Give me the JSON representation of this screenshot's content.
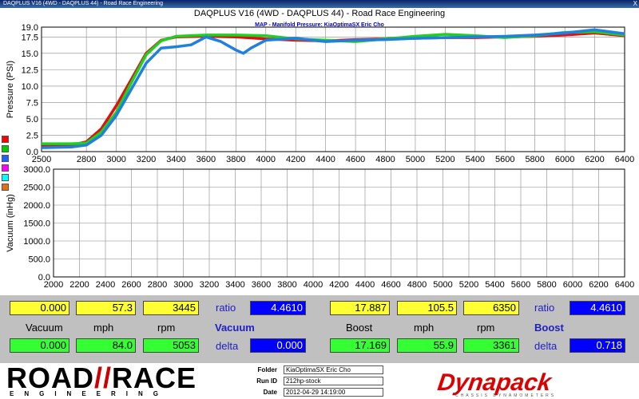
{
  "window": {
    "title": "DAQPLUS V16 (4WD - DAQPLUS 44) - Road Race Engineering",
    "close": "X"
  },
  "header": {
    "title": "DAQPLUS V16 (4WD - DAQPLUS 44) - Road Race Engineering",
    "subtitle": "MAP - Manifold Pressure: KiaOptimaSX Eric Cho"
  },
  "legend_colors": [
    "#ff0000",
    "#00cc00",
    "#2060ff",
    "#ff00ff",
    "#00ffff",
    "#e07010"
  ],
  "chart_data": [
    {
      "type": "line",
      "ylabel": "Pressure (PSI)",
      "ylim": [
        0,
        19
      ],
      "yticks": [
        "0.0",
        "2.5",
        "5.0",
        "7.5",
        "10.0",
        "12.5",
        "15.0",
        "17.5",
        "19.0"
      ],
      "xlim": [
        2500,
        6400
      ],
      "xticks": [
        "2500",
        "2800",
        "3000",
        "3200",
        "3400",
        "3600",
        "3800",
        "4000",
        "4200",
        "4400",
        "4600",
        "4800",
        "5000",
        "5200",
        "5400",
        "5600",
        "5800",
        "6000",
        "6200",
        "6400"
      ],
      "grid": true,
      "series": [
        {
          "color": "#e01010",
          "x": [
            2500,
            2700,
            2800,
            2900,
            3000,
            3100,
            3200,
            3300,
            3400,
            3600,
            3800,
            4000,
            4200,
            4400,
            4600,
            4800,
            5000,
            5200,
            5400,
            5600,
            5800,
            6000,
            6200,
            6400
          ],
          "y": [
            1.0,
            1.0,
            1.5,
            3.5,
            7.0,
            11.0,
            15.0,
            17.0,
            17.5,
            17.6,
            17.5,
            17.2,
            17.0,
            16.9,
            17.1,
            17.2,
            17.3,
            17.4,
            17.4,
            17.5,
            17.6,
            17.8,
            18.1,
            17.7
          ]
        },
        {
          "color": "#20d020",
          "x": [
            2500,
            2700,
            2800,
            2900,
            3000,
            3100,
            3200,
            3300,
            3400,
            3600,
            3800,
            4000,
            4200,
            4400,
            4600,
            4800,
            5000,
            5200,
            5400,
            5600,
            5800,
            6000,
            6200,
            6400
          ],
          "y": [
            1.2,
            1.2,
            1.3,
            3.0,
            6.0,
            10.5,
            14.8,
            16.9,
            17.6,
            17.8,
            17.8,
            17.7,
            17.2,
            17.0,
            16.8,
            17.2,
            17.6,
            17.9,
            17.7,
            17.4,
            17.7,
            18.2,
            18.3,
            17.8
          ]
        },
        {
          "color": "#2080e0",
          "x": [
            2500,
            2700,
            2800,
            2900,
            3000,
            3100,
            3200,
            3300,
            3400,
            3500,
            3600,
            3700,
            3800,
            3850,
            3900,
            4000,
            4200,
            4400,
            4600,
            4800,
            5000,
            5200,
            5400,
            5600,
            5800,
            6000,
            6200,
            6400
          ],
          "y": [
            0.6,
            0.7,
            1.0,
            2.5,
            5.5,
            9.5,
            13.5,
            15.8,
            16.0,
            16.3,
            17.5,
            16.8,
            15.5,
            15.0,
            15.8,
            17.0,
            17.3,
            16.8,
            17.0,
            17.1,
            17.3,
            17.4,
            17.5,
            17.6,
            17.8,
            18.1,
            18.6,
            18.0
          ]
        }
      ]
    },
    {
      "type": "line",
      "ylabel": "Vacuum (inHg)",
      "ylim": [
        0,
        3000
      ],
      "yticks": [
        "0.0",
        "500.0",
        "1000.0",
        "1500.0",
        "2000.0",
        "2500.0",
        "3000.0"
      ],
      "xlim": [
        2000,
        6400
      ],
      "xticks": [
        "2000",
        "2200",
        "2400",
        "2600",
        "2800",
        "3000",
        "3200",
        "3400",
        "3600",
        "3800",
        "4000",
        "4200",
        "4400",
        "4600",
        "4800",
        "5000",
        "5200",
        "5400",
        "5600",
        "5800",
        "6000",
        "6200",
        "6400"
      ],
      "grid": true,
      "series": []
    }
  ],
  "readouts": {
    "left": {
      "top": {
        "vacuum": "0.000",
        "mph": "57.3",
        "rpm": "3445",
        "ratio_label": "ratio",
        "ratio": "4.4610"
      },
      "labels": {
        "vacuum": "Vacuum",
        "mph": "mph",
        "rpm": "rpm",
        "section": "Vacuum"
      },
      "bottom": {
        "vacuum": "0.000",
        "mph": "84.0",
        "rpm": "5053",
        "delta_label": "delta",
        "delta": "0.000"
      }
    },
    "right": {
      "top": {
        "boost": "17.887",
        "mph": "105.5",
        "rpm": "6350",
        "ratio_label": "ratio",
        "ratio": "4.4610"
      },
      "labels": {
        "boost": "Boost",
        "mph": "mph",
        "rpm": "rpm",
        "section": "Boost"
      },
      "bottom": {
        "boost": "17.169",
        "mph": "55.9",
        "rpm": "3361",
        "delta_label": "delta",
        "delta": "0.718"
      }
    }
  },
  "footer": {
    "logo_road": "ROAD",
    "logo_race": "RACE",
    "logo_sub": "ENGINEERING",
    "folder_label": "Folder",
    "folder": "KiaOptimaSX Eric Cho",
    "runid_label": "Run ID",
    "runid": "212hp-stock",
    "date_label": "Date",
    "date": "2012-04-29 14:19:00",
    "brand": "Dynapack",
    "brand_sub": "CHASSIS DYNAMOMETERS"
  }
}
